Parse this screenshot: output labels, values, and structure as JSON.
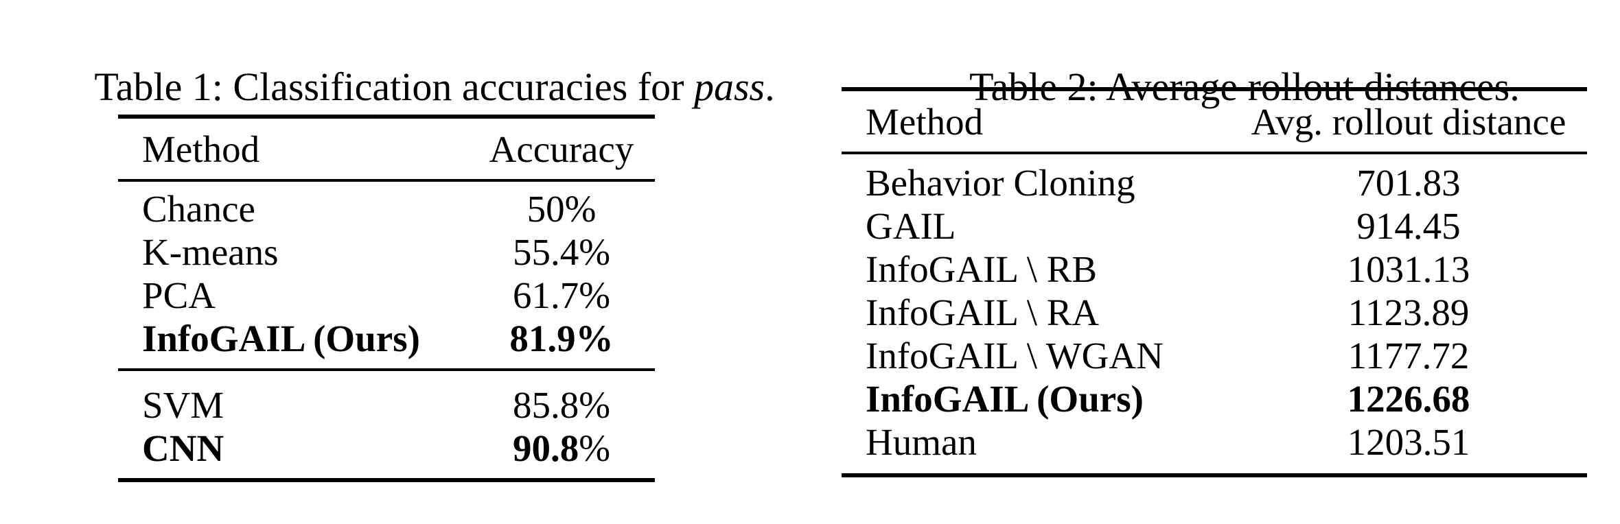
{
  "t1": {
    "caption": {
      "pre": "Table 1: Classification accuracies for ",
      "em": "pass",
      "post": "."
    },
    "columns": {
      "method": "Method",
      "value": "Accuracy"
    },
    "sections": [
      {
        "rows": [
          {
            "method": "Chance",
            "value": "50",
            "suffix": "%",
            "bold": false
          },
          {
            "method": "K-means",
            "value": "55.4",
            "suffix": "%",
            "bold": false
          },
          {
            "method": "PCA",
            "value": "61.7",
            "suffix": "%",
            "bold": false
          },
          {
            "method": "InfoGAIL (Ours)",
            "value": "81.9",
            "suffix": "%",
            "bold": true
          }
        ]
      },
      {
        "rows": [
          {
            "method": "SVM",
            "value": "85.8",
            "suffix": "%",
            "bold": false
          },
          {
            "method": "CNN",
            "value": "90.8",
            "suffix": "%",
            "bold": true
          }
        ]
      }
    ]
  },
  "t2": {
    "caption": {
      "pre": "Table 2: Average rollout distances.",
      "em": "",
      "post": ""
    },
    "columns": {
      "method": "Method",
      "value": "Avg. rollout distance"
    },
    "sections": [
      {
        "rows": [
          {
            "method": "Behavior Cloning",
            "value": "701.83",
            "suffix": "",
            "bold": false
          },
          {
            "method": "GAIL",
            "value": "914.45",
            "suffix": "",
            "bold": false
          },
          {
            "method": "InfoGAIL \\ RB",
            "value": "1031.13",
            "suffix": "",
            "bold": false
          },
          {
            "method": "InfoGAIL \\ RA",
            "value": "1123.89",
            "suffix": "",
            "bold": false
          },
          {
            "method": "InfoGAIL \\ WGAN",
            "value": "1177.72",
            "suffix": "",
            "bold": false
          },
          {
            "method": "InfoGAIL (Ours)",
            "value": "1226.68",
            "suffix": "",
            "bold": true
          },
          {
            "method": "Human",
            "value": "1203.51",
            "suffix": "",
            "bold": false
          }
        ]
      }
    ],
    "rule_color": "#000000",
    "text_color": "#000000",
    "background_color": "#ffffff"
  }
}
